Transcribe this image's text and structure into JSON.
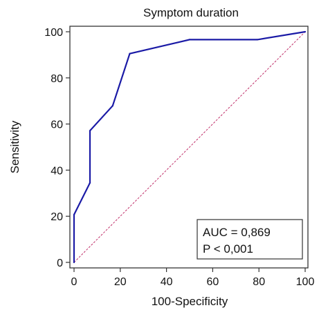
{
  "chart_data": {
    "type": "line",
    "title": "Symptom duration",
    "xlabel": "100-Specificity",
    "ylabel": "Sensitivity",
    "xlim": [
      0,
      100
    ],
    "ylim": [
      0,
      100
    ],
    "x_ticks": [
      "0",
      "20",
      "40",
      "60",
      "80",
      "100"
    ],
    "y_ticks": [
      "0",
      "20",
      "40",
      "60",
      "80",
      "100"
    ],
    "grid": false,
    "series": [
      {
        "color": "#1a1aa6",
        "style": "solid",
        "points": [
          [
            0,
            0
          ],
          [
            0,
            20.7
          ],
          [
            6.9,
            34.5
          ],
          [
            6.9,
            57.1
          ],
          [
            16.7,
            67.9
          ],
          [
            24.1,
            90.5
          ],
          [
            50,
            96.6
          ],
          [
            79.3,
            96.6
          ],
          [
            100,
            100
          ]
        ]
      },
      {
        "color": "#c0306a",
        "style": "dotted",
        "points": [
          [
            0,
            0
          ],
          [
            100,
            100
          ]
        ]
      }
    ],
    "annotations": [
      "AUC = 0,869",
      "P < 0,001"
    ]
  }
}
